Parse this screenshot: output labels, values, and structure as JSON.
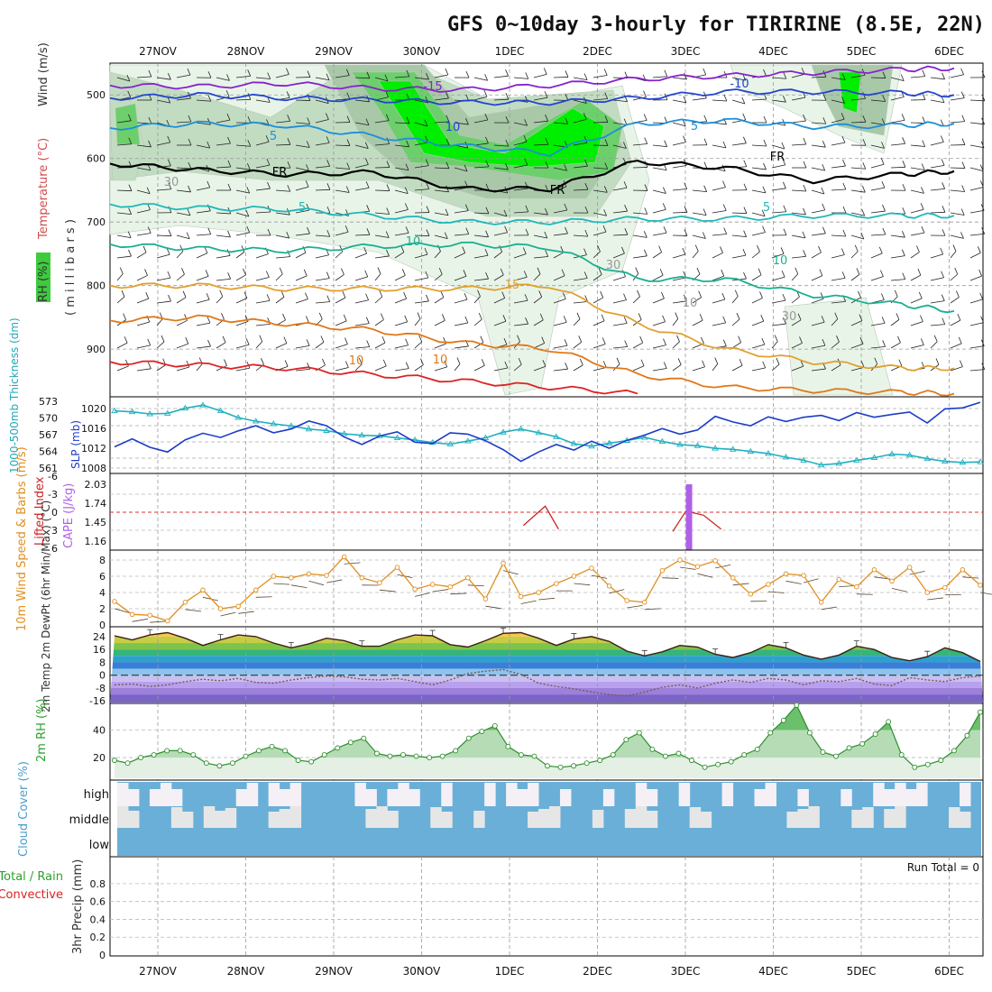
{
  "header": {
    "title": "GFS 0~10day 3-hourly for TIRIRINE (8.5E, 22N)"
  },
  "x_axis": {
    "dates": [
      "27NOV",
      "28NOV",
      "29NOV",
      "30NOV",
      "1DEC",
      "2DEC",
      "3DEC",
      "4DEC",
      "5DEC",
      "6DEC"
    ]
  },
  "chart_data": [
    {
      "panel": "upper_air",
      "type": "heatmap",
      "y_label_rh": "RH (%)",
      "y_label_temp": "Temperature (°C)",
      "y_label_wind": "Wind (m/s)",
      "y_units": "( m i l l i b a r s )",
      "y_ticks": [
        "500",
        "600",
        "700",
        "800",
        "900"
      ],
      "ylim_mb": [
        450,
        975
      ],
      "contour_labels": [
        "-15",
        "-10",
        "10",
        "5",
        "5",
        "FR",
        "FR",
        "FR",
        "5",
        "5",
        "10",
        "10",
        "15",
        "30",
        "30",
        "10",
        "30",
        "10",
        "10"
      ],
      "isotherms": [
        {
          "name": "-15",
          "color": "#8822cc",
          "x": [
            0,
            1,
            2,
            3,
            4,
            5,
            6,
            7,
            8,
            9,
            9.6
          ],
          "y": [
            485,
            487,
            482,
            490,
            492,
            485,
            475,
            470,
            465,
            460,
            458
          ]
        },
        {
          "name": "-10",
          "color": "#2244cc",
          "x": [
            0,
            1,
            2,
            3,
            4,
            5,
            6,
            7,
            8,
            9,
            9.6
          ],
          "y": [
            505,
            500,
            505,
            508,
            512,
            512,
            505,
            495,
            495,
            497,
            500
          ]
        },
        {
          "name": "-5",
          "color": "#1c8fd8",
          "x": [
            0,
            1,
            2,
            3,
            4,
            5,
            6,
            7,
            8,
            9,
            9.6
          ],
          "y": [
            552,
            545,
            548,
            565,
            580,
            592,
            545,
            540,
            550,
            548,
            545
          ]
        },
        {
          "name": "FR",
          "color": "#000000",
          "x": [
            0,
            1,
            2,
            3,
            4,
            5,
            6,
            7,
            8,
            9,
            9.6
          ],
          "y": [
            608,
            618,
            625,
            622,
            648,
            648,
            605,
            615,
            635,
            625,
            620
          ]
        },
        {
          "name": "5",
          "color": "#20b8b8",
          "x": [
            0,
            1,
            2,
            3,
            4,
            5,
            6,
            7,
            8,
            9,
            9.6
          ],
          "y": [
            672,
            678,
            680,
            690,
            700,
            700,
            695,
            695,
            690,
            690,
            690
          ]
        },
        {
          "name": "10",
          "color": "#18b090",
          "x": [
            0,
            1,
            2,
            3,
            4,
            5,
            6,
            7,
            8,
            9,
            9.6
          ],
          "y": [
            735,
            742,
            745,
            738,
            735,
            740,
            790,
            790,
            815,
            830,
            840
          ]
        },
        {
          "name": "15",
          "color": "#e0a030",
          "x": [
            0,
            1,
            2,
            3,
            4,
            5,
            6,
            7,
            8,
            9,
            9.6
          ],
          "y": [
            800,
            800,
            805,
            805,
            805,
            800,
            860,
            900,
            920,
            930,
            930
          ]
        },
        {
          "name": "20",
          "color": "#e07818",
          "x": [
            0,
            1,
            2,
            3,
            4,
            5,
            6,
            7,
            8,
            9,
            9.6
          ],
          "y": [
            855,
            850,
            860,
            870,
            890,
            900,
            940,
            960,
            965,
            968,
            970
          ]
        },
        {
          "name": "25",
          "color": "#dd2222",
          "x": [
            0,
            1,
            2,
            3,
            4,
            5,
            6
          ],
          "y": [
            920,
            925,
            930,
            940,
            950,
            960,
            970
          ]
        }
      ],
      "rh_colors": [
        "#e8f4e8",
        "#c2dcc2",
        "#a8c8a8",
        "#6ccf6c",
        "#00ee00"
      ]
    },
    {
      "panel": "thickness_slp",
      "type": "line",
      "y_label_left": "1000-500mb Thickness (dm)",
      "y_label_right": "SLP (mb)",
      "left_ticks": [
        "573",
        "570",
        "567",
        "564",
        "561"
      ],
      "right_ticks": [
        "1020",
        "1016",
        "1012",
        "1008"
      ],
      "series": [
        {
          "name": "Thickness",
          "color": "#20b0c0",
          "unit": "dm",
          "ylim": [
            560,
            573.5
          ],
          "values": [
            571.5,
            571.3,
            570.9,
            571.0,
            572.0,
            572.6,
            571.5,
            570.2,
            569.5,
            569.0,
            568.6,
            568.0,
            567.7,
            567.1,
            566.8,
            566.7,
            566.3,
            565.9,
            565.4,
            565.1,
            565.7,
            566.3,
            567.4,
            568.0,
            567.3,
            566.5,
            565.2,
            564.7,
            565.3,
            565.8,
            566.4,
            565.6,
            565.0,
            564.8,
            564.3,
            564.1,
            563.7,
            563.3,
            562.6,
            562.0,
            561.1,
            561.4,
            562.0,
            562.5,
            563.2,
            563.0,
            562.3,
            561.8,
            561.6,
            561.7
          ]
        },
        {
          "name": "SLP",
          "color": "#1c3cc8",
          "unit": "mb",
          "ylim": [
            1007,
            1022
          ],
          "values": [
            1012.1,
            1013.8,
            1012.0,
            1011.0,
            1013.6,
            1015.0,
            1014.1,
            1015.5,
            1016.6,
            1015.1,
            1015.9,
            1017.6,
            1016.6,
            1014.2,
            1012.6,
            1014.4,
            1015.3,
            1013.1,
            1012.8,
            1015.1,
            1014.8,
            1013.4,
            1011.5,
            1009.0,
            1011.0,
            1012.6,
            1011.4,
            1013.3,
            1011.8,
            1013.5,
            1014.6,
            1016.0,
            1014.8,
            1015.7,
            1018.6,
            1017.4,
            1016.6,
            1018.5,
            1017.5,
            1018.4,
            1018.8,
            1017.7,
            1019.4,
            1018.4,
            1019.0,
            1019.5,
            1017.2,
            1020.2,
            1020.4,
            1021.6
          ]
        }
      ]
    },
    {
      "panel": "cape_li",
      "type": "line",
      "y_label_left": "Lifted Index",
      "y_label_right": "CAPE (J/kg)",
      "left_ticks": [
        "-6",
        "-3",
        "0",
        "3",
        "6"
      ],
      "right_ticks": [
        "2.03",
        "1.74",
        "1.45",
        "1.16"
      ],
      "lifted_index": {
        "color": "#cc2222",
        "x": [
          4.7,
          4.95,
          5.1
        ],
        "y": [
          2.2,
          -1.0,
          2.8
        ],
        "x2": [
          6.4,
          6.55,
          6.75,
          6.95
        ],
        "y2": [
          3.2,
          -0.2,
          0.5,
          2.8
        ]
      },
      "cape": {
        "color": "#b060e8",
        "x": 6.58,
        "value": 2.03
      }
    },
    {
      "panel": "wind10m",
      "type": "line",
      "y_label": "10m Wind Speed & Barbs (m/s)",
      "y_ticks": [
        "8",
        "6",
        "4",
        "2",
        "0"
      ],
      "ylim": [
        0,
        9
      ],
      "series": [
        {
          "name": "Speed",
          "color": "#e08f20",
          "unit": "m/s",
          "values": [
            2.9,
            1.3,
            1.2,
            0.5,
            2.8,
            4.3,
            2.0,
            2.3,
            4.3,
            6.0,
            5.8,
            6.3,
            6.1,
            8.4,
            5.8,
            5.2,
            7.1,
            4.4,
            5.0,
            4.7,
            5.8,
            3.2,
            7.6,
            3.5,
            4.0,
            5.1,
            6.0,
            7.0,
            4.8,
            3.0,
            2.8,
            6.7,
            8.0,
            7.2,
            7.9,
            5.8,
            3.8,
            5.0,
            6.3,
            6.1,
            2.8,
            5.6,
            4.7,
            6.8,
            5.4,
            7.1,
            4.0,
            4.6,
            6.8,
            4.9
          ]
        }
      ]
    },
    {
      "panel": "temp2m",
      "type": "area",
      "y_label": "2m Temp 2m DewPt (6hr Min/Max) (°C)",
      "y_ticks": [
        "24",
        "16",
        "8",
        "0",
        "-8",
        "-16"
      ],
      "ylim": [
        -17,
        29
      ],
      "series": [
        {
          "name": "Temp",
          "color": "#3c1e14",
          "values": [
            24.5,
            22.0,
            25.0,
            26.5,
            23.0,
            18.5,
            22.0,
            25.0,
            24.0,
            20.0,
            17.0,
            19.5,
            23.0,
            21.5,
            18.0,
            18.0,
            22.0,
            25.0,
            24.5,
            19.0,
            17.5,
            21.5,
            26.0,
            26.5,
            23.0,
            18.5,
            22.5,
            24.0,
            21.0,
            15.0,
            12.0,
            14.5,
            18.5,
            17.5,
            13.0,
            11.0,
            14.0,
            19.0,
            17.0,
            12.5,
            10.0,
            12.5,
            18.0,
            16.0,
            11.0,
            9.0,
            11.5,
            17.0,
            14.0,
            8.5
          ]
        },
        {
          "name": "DewPt",
          "color": "#e0b8d8",
          "values": [
            -6.0,
            -5.5,
            -7.0,
            -6.0,
            -4.0,
            -2.5,
            -3.5,
            -2.0,
            -4.5,
            -5.0,
            -3.0,
            -1.5,
            -0.5,
            -1.0,
            -2.5,
            -3.0,
            -2.0,
            -4.0,
            -6.0,
            -3.0,
            1.0,
            2.5,
            3.5,
            0.5,
            -5.0,
            -7.0,
            -8.5,
            -10.5,
            -12.0,
            -13.0,
            -10.5,
            -7.5,
            -6.0,
            -8.0,
            -5.0,
            -3.0,
            -4.5,
            -2.0,
            -3.0,
            -6.0,
            -3.5,
            -4.0,
            -2.0,
            -5.5,
            -6.5,
            -1.5,
            -3.0,
            -4.0,
            -1.5,
            -0.5
          ]
        }
      ]
    },
    {
      "panel": "rh2m",
      "type": "area",
      "y_label": "2m RH (%)",
      "y_ticks": [
        "40",
        "20"
      ],
      "ylim": [
        5,
        58
      ],
      "series": [
        {
          "name": "RH",
          "color": "#2e8e2e",
          "values": [
            18,
            16,
            20,
            22,
            25,
            25,
            22,
            16,
            14,
            16,
            21,
            25,
            28,
            25,
            18,
            17,
            22,
            27,
            31,
            34,
            23,
            21,
            22,
            21,
            20,
            21,
            25,
            34,
            39,
            43,
            28,
            22,
            21,
            14,
            13,
            14,
            16,
            18,
            22,
            33,
            38,
            26,
            21,
            23,
            18,
            13,
            15,
            17,
            22,
            26,
            38,
            47,
            58,
            38,
            24,
            21,
            27,
            30,
            37,
            46,
            22,
            13,
            15,
            18,
            25,
            36,
            53
          ]
        }
      ]
    },
    {
      "panel": "cloud_cover",
      "type": "heatmap",
      "y_label": "Cloud Cover (%)",
      "levels": [
        "high",
        "middle",
        "low"
      ],
      "colors": {
        "cloud": "#6aafd8",
        "clear_high": "#f4f0f6",
        "clear_middle": "#e6e6e6"
      }
    },
    {
      "panel": "precip",
      "type": "bar",
      "y_label": "3hr Precip (mm)",
      "legend_left": "Total / Rain",
      "legend_left2": "Convective",
      "y_ticks": [
        "0.8",
        "0.6",
        "0.4",
        "0.2",
        "0"
      ],
      "run_total": "Run Total = 0"
    }
  ]
}
